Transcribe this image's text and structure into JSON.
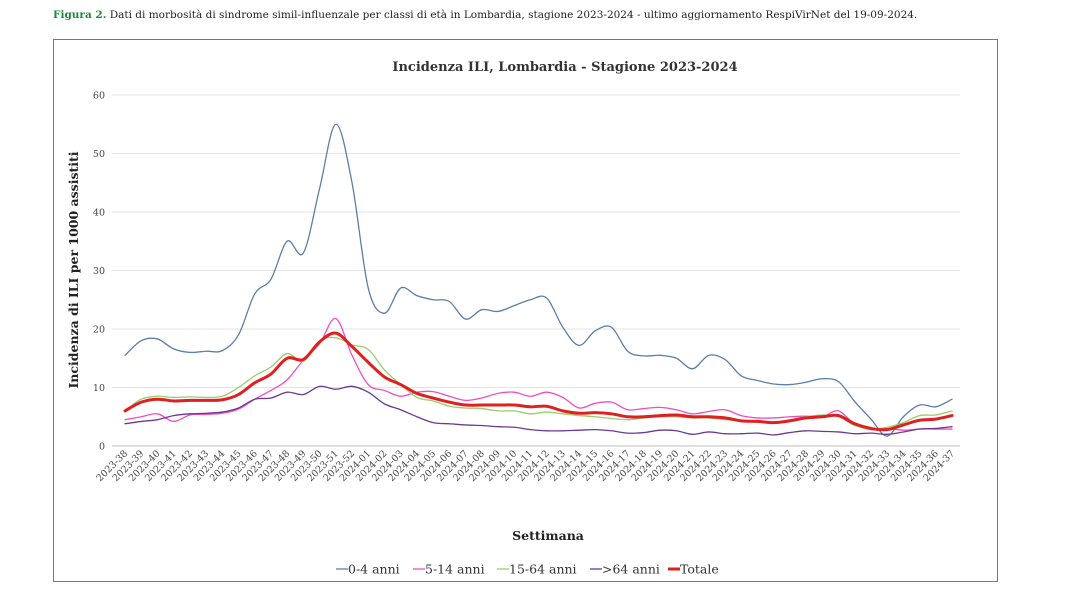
{
  "caption": {
    "figure_label": "Figura 2.",
    "text": " Dati di morbosità di sindrome simil-influenzale per classi di età in Lombardia, stagione 2023-2024 - ultimo aggiornamento RespiVirNet del 19-09-2024."
  },
  "chart_data": {
    "type": "line",
    "title": "Incidenza ILI, Lombardia - Stagione 2023-2024",
    "xlabel": "Settimana",
    "ylabel": "Incidenza di ILI per 1000 assistiti",
    "ylim": [
      0,
      60
    ],
    "yticks": [
      0,
      10,
      20,
      30,
      40,
      50,
      60
    ],
    "grid": true,
    "legend_position": "bottom",
    "categories": [
      "2023-38",
      "2023-39",
      "2023-40",
      "2023-41",
      "2023-42",
      "2023-43",
      "2023-44",
      "2023-45",
      "2023-46",
      "2023-47",
      "2023-48",
      "2023-49",
      "2023-50",
      "2023-51",
      "2023-52",
      "2024-01",
      "2024-02",
      "2024-03",
      "2024-04",
      "2024-05",
      "2024-06",
      "2024-07",
      "2024-08",
      "2024-09",
      "2024-10",
      "2024-11",
      "2024-12",
      "2024-13",
      "2024-14",
      "2024-15",
      "2024-16",
      "2024-17",
      "2024-18",
      "2024-19",
      "2024-20",
      "2024-21",
      "2024-22",
      "2024-23",
      "2024-24",
      "2024-25",
      "2024-26",
      "2024-27",
      "2024-28",
      "2024-29",
      "2024-30",
      "2024-31",
      "2024-32",
      "2024-33",
      "2024-34",
      "2024-35",
      "2024-36",
      "2024-37"
    ],
    "series": [
      {
        "name": "0-4 anni",
        "color": "#5b7fa6",
        "width": 1.3,
        "values": [
          15.5,
          18.0,
          18.3,
          16.6,
          16.0,
          16.2,
          16.3,
          19.0,
          26.0,
          28.5,
          35.0,
          33.0,
          44.0,
          55.0,
          45.0,
          27.0,
          22.7,
          27.0,
          25.7,
          25.0,
          24.7,
          21.7,
          23.3,
          23.0,
          24.0,
          25.0,
          25.3,
          20.3,
          17.2,
          19.7,
          20.3,
          16.2,
          15.4,
          15.5,
          15.0,
          13.2,
          15.5,
          14.8,
          12.0,
          11.2,
          10.6,
          10.5,
          10.9,
          11.5,
          11.0,
          7.6,
          4.6,
          1.7,
          5.0,
          7.0,
          6.7,
          8.0
        ]
      },
      {
        "name": "5-14 anni",
        "color": "#ee4fc0",
        "width": 1.3,
        "values": [
          4.5,
          5.0,
          5.5,
          4.2,
          5.3,
          5.4,
          5.6,
          6.3,
          8.0,
          9.5,
          11.3,
          14.7,
          17.5,
          21.8,
          15.5,
          10.5,
          9.5,
          8.5,
          9.2,
          9.3,
          8.5,
          7.8,
          8.2,
          9.0,
          9.2,
          8.5,
          9.2,
          8.3,
          6.5,
          7.3,
          7.5,
          6.2,
          6.4,
          6.6,
          6.2,
          5.5,
          5.9,
          6.2,
          5.2,
          4.8,
          4.8,
          5.0,
          5.1,
          5.0,
          6.0,
          3.7,
          2.8,
          3.0,
          2.7,
          2.9,
          2.9,
          2.9
        ]
      },
      {
        "name": "15-64 anni",
        "color": "#9acd6b",
        "width": 1.3,
        "values": [
          6.0,
          8.0,
          8.5,
          8.3,
          8.4,
          8.3,
          8.5,
          10.0,
          12.0,
          13.5,
          15.8,
          14.5,
          18.0,
          18.5,
          17.3,
          16.5,
          13.0,
          10.5,
          8.3,
          7.7,
          6.8,
          6.5,
          6.4,
          6.0,
          6.0,
          5.5,
          5.8,
          5.5,
          5.2,
          5.0,
          4.7,
          4.5,
          4.8,
          5.0,
          5.0,
          4.8,
          4.8,
          4.5,
          4.3,
          4.2,
          4.0,
          4.5,
          5.0,
          5.3,
          5.0,
          3.5,
          2.9,
          3.2,
          4.0,
          5.2,
          5.3,
          6.0
        ]
      },
      {
        "name": ">64 anni",
        "color": "#6b3a8e",
        "width": 1.3,
        "values": [
          3.8,
          4.2,
          4.5,
          5.2,
          5.5,
          5.6,
          5.8,
          6.5,
          8.0,
          8.2,
          9.2,
          8.8,
          10.2,
          9.7,
          10.2,
          9.2,
          7.2,
          6.2,
          5.0,
          4.0,
          3.8,
          3.6,
          3.5,
          3.3,
          3.2,
          2.8,
          2.6,
          2.6,
          2.7,
          2.8,
          2.6,
          2.2,
          2.3,
          2.7,
          2.6,
          2.0,
          2.4,
          2.1,
          2.1,
          2.2,
          1.9,
          2.3,
          2.6,
          2.5,
          2.4,
          2.1,
          2.2,
          2.0,
          2.4,
          2.9,
          3.0,
          3.3
        ]
      },
      {
        "name": "Totale",
        "color": "#e02020",
        "width": 3,
        "values": [
          6.0,
          7.5,
          8.0,
          7.7,
          7.8,
          7.8,
          7.9,
          8.8,
          10.8,
          12.3,
          15.0,
          14.8,
          17.8,
          19.3,
          17.0,
          14.3,
          11.8,
          10.5,
          9.0,
          8.2,
          7.5,
          7.0,
          7.0,
          7.0,
          7.0,
          6.7,
          6.8,
          6.0,
          5.6,
          5.7,
          5.5,
          5.0,
          5.0,
          5.2,
          5.3,
          5.0,
          5.0,
          4.8,
          4.3,
          4.2,
          4.0,
          4.3,
          4.8,
          5.0,
          5.2,
          3.8,
          3.0,
          2.8,
          3.6,
          4.4,
          4.6,
          5.2
        ]
      }
    ]
  }
}
